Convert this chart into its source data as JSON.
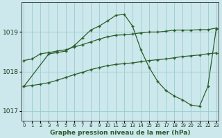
{
  "title": "Graphe pression niveau de la mer (hPa)",
  "bg_color": "#cce8ec",
  "grid_color": "#99cccc",
  "line_color": "#2a5e2a",
  "hours": [
    0,
    1,
    2,
    3,
    4,
    5,
    6,
    7,
    8,
    9,
    10,
    11,
    12,
    13,
    14,
    15,
    16,
    17,
    18,
    19,
    20,
    21,
    22,
    23
  ],
  "series_peak": [
    1017.62,
    null,
    null,
    1018.45,
    1018.48,
    1018.52,
    1018.65,
    1018.85,
    1019.05,
    1019.15,
    1019.28,
    1019.42,
    1019.45,
    1019.15,
    1018.55,
    1018.1,
    1017.75,
    1017.52,
    1017.38,
    1017.28,
    1017.15,
    1017.12,
    1017.62,
    1019.08
  ],
  "series_high": [
    1018.28,
    1018.32,
    1018.45,
    1018.48,
    1018.52,
    1018.55,
    1018.62,
    1018.68,
    1018.75,
    1018.82,
    1018.88,
    1018.92,
    1018.93,
    1018.95,
    1018.98,
    1019.0,
    1019.0,
    1019.02,
    1019.05,
    1019.05,
    1019.05,
    1019.06,
    1019.06,
    1019.1
  ],
  "series_low": [
    1017.62,
    1017.65,
    1017.68,
    1017.72,
    1017.78,
    1017.85,
    1017.92,
    1017.98,
    1018.05,
    1018.1,
    1018.15,
    1018.18,
    1018.2,
    1018.22,
    1018.25,
    1018.28,
    1018.3,
    1018.32,
    1018.35,
    1018.38,
    1018.4,
    1018.42,
    1018.45,
    1018.47
  ],
  "ylim": [
    1016.75,
    1019.75
  ],
  "yticks": [
    1017,
    1018,
    1019
  ],
  "xlim": [
    -0.3,
    23.3
  ]
}
